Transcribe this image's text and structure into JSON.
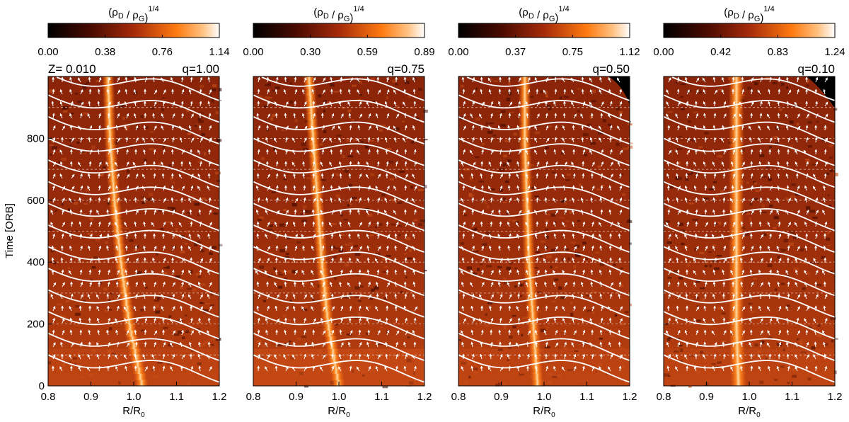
{
  "figure": {
    "ylabel": "Time [ORB]",
    "z_label": "Z= 0.010"
  },
  "chart_data": [
    {
      "type": "heatmap",
      "panel": 1,
      "colorbar_title": "(ρD / ρG)1/4",
      "colorbar_ticks": [
        "0.00",
        "0.38",
        "0.76",
        "1.14"
      ],
      "colorbar_range": [
        0.0,
        1.14
      ],
      "annotation": "q=1.00",
      "xlabel": "R/R0",
      "xlim": [
        0.8,
        1.2
      ],
      "x_ticks": [
        "0.8",
        "0.9",
        "1.0",
        "1.1",
        "1.2"
      ],
      "ylim": [
        0,
        1000
      ],
      "y_ticks": [
        "0",
        "200",
        "400",
        "600",
        "800"
      ],
      "dust_ring_center": [
        [
          0,
          1.02
        ],
        [
          200,
          0.99
        ],
        [
          400,
          0.97
        ],
        [
          600,
          0.955
        ],
        [
          800,
          0.945
        ],
        [
          1000,
          0.94
        ]
      ],
      "flow_lines_white": true
    },
    {
      "type": "heatmap",
      "panel": 2,
      "colorbar_title": "(ρD / ρG)1/4",
      "colorbar_ticks": [
        "0.00",
        "0.30",
        "0.59",
        "0.89"
      ],
      "colorbar_range": [
        0.0,
        0.89
      ],
      "annotation": "q=0.75",
      "xlabel": "R/R0",
      "xlim": [
        0.8,
        1.2
      ],
      "x_ticks": [
        "0.8",
        "0.9",
        "1.0",
        "1.1",
        "1.2"
      ],
      "ylim": [
        0,
        1000
      ],
      "dust_ring_center": [
        [
          0,
          1.0
        ],
        [
          200,
          0.975
        ],
        [
          400,
          0.96
        ],
        [
          600,
          0.95
        ],
        [
          800,
          0.94
        ],
        [
          1000,
          0.93
        ]
      ],
      "flow_lines_white": true
    },
    {
      "type": "heatmap",
      "panel": 3,
      "colorbar_title": "(ρD / ρG)1/4",
      "colorbar_ticks": [
        "0.00",
        "0.37",
        "0.75",
        "1.12"
      ],
      "colorbar_range": [
        0.0,
        1.12
      ],
      "annotation": "q=0.50",
      "xlabel": "R/R0",
      "xlim": [
        0.8,
        1.2
      ],
      "x_ticks": [
        "0.8",
        "0.9",
        "1.0",
        "1.1",
        "1.2"
      ],
      "ylim": [
        0,
        1000
      ],
      "dust_ring_center": [
        [
          0,
          0.985
        ],
        [
          200,
          0.975
        ],
        [
          400,
          0.965
        ],
        [
          600,
          0.96
        ],
        [
          800,
          0.955
        ],
        [
          1000,
          0.955
        ]
      ],
      "flow_lines_white": true
    },
    {
      "type": "heatmap",
      "panel": 4,
      "colorbar_title": "(ρD / ρG)1/4",
      "colorbar_ticks": [
        "0.00",
        "0.42",
        "0.83",
        "1.24"
      ],
      "colorbar_range": [
        0.0,
        1.24
      ],
      "annotation": "q=0.10",
      "xlabel": "R/R0",
      "xlim": [
        0.8,
        1.2
      ],
      "x_ticks": [
        "0.8",
        "0.9",
        "1.0",
        "1.1",
        "1.2"
      ],
      "ylim": [
        0,
        1000
      ],
      "dust_ring_center": [
        [
          0,
          0.975
        ],
        [
          200,
          0.97
        ],
        [
          400,
          0.97
        ],
        [
          600,
          0.97
        ],
        [
          800,
          0.97
        ],
        [
          1000,
          0.97
        ]
      ],
      "flow_lines_white": true
    }
  ]
}
